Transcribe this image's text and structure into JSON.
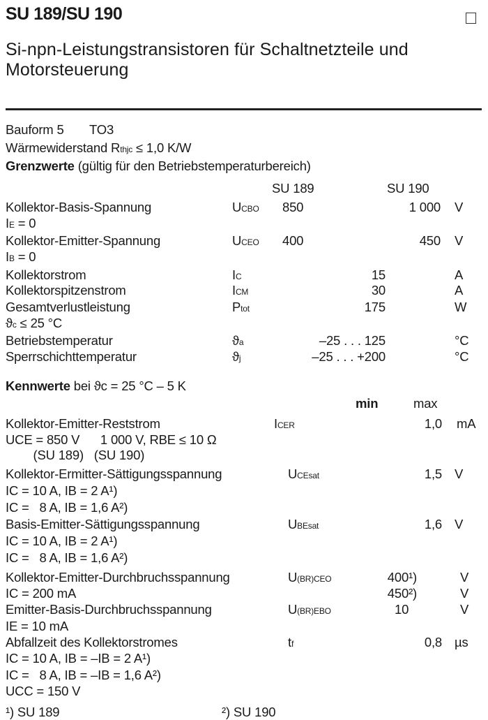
{
  "header": {
    "title": "SU 189/SU 190",
    "subtitle_line1": "Si-npn-Leistungstransistoren für Schaltnetzteile und",
    "subtitle_line2": "Motorsteuerung"
  },
  "info": {
    "bauform": "Bauform 5",
    "package": "TO3",
    "rth_label": "Wärmewiderstand",
    "rth_sym": "R",
    "rth_sub": "thjc",
    "rth_value": "≤ 1,0 K/W"
  },
  "grenzwerte": {
    "heading_bold": "Grenzwerte",
    "heading_rest": "(gültig für den Betriebstemperaturbereich)",
    "col1": "SU 189",
    "col2": "SU 190",
    "rows": [
      {
        "name": "Kollektor-Basis-Spannung",
        "sym": "U",
        "sub": "CBO",
        "v1": "850",
        "v2": "1 000",
        "unit": "V",
        "cond": "I",
        "cond_sub": "E",
        "cond_rest": " = 0"
      },
      {
        "name": "Kollektor-Emitter-Spannung",
        "sym": "U",
        "sub": "CEO",
        "v1": "400",
        "v2": "450",
        "unit": "V",
        "cond": "I",
        "cond_sub": "B",
        "cond_rest": " = 0"
      },
      {
        "name": "Kollektorstrom",
        "sym": "I",
        "sub": "C",
        "v": "15",
        "unit": "A"
      },
      {
        "name": "Kollektorspitzenstrom",
        "sym": "I",
        "sub": "CM",
        "v": "30",
        "unit": "A"
      },
      {
        "name": "Gesamtverlustleistung",
        "sym": "P",
        "sub": "tot",
        "v": "175",
        "unit": "W",
        "cond": "ϑ",
        "cond_sub": "c",
        "cond_rest": " ≤ 25 °C"
      },
      {
        "name": "Betriebstemperatur",
        "sym": "ϑ",
        "sub": "a",
        "v": "–25 . . . 125",
        "unit": "°C"
      },
      {
        "name": "Sperrschichttemperatur",
        "sym": "ϑ",
        "sub": "j",
        "v": "–25 . . . +200",
        "unit": "°C"
      }
    ]
  },
  "kennwerte": {
    "heading_bold": "Kennwerte",
    "heading_rest": "bei ϑc = 25 °C – 5 K",
    "col_min": "min",
    "col_max": "max",
    "lines": [
      {
        "text": "Kollektor-Emitter-Reststrom",
        "sym": "I",
        "sub": "CER",
        "max": "1,0",
        "unit": "mA"
      },
      {
        "text": "UCE = 850 V      1 000 V, RBE ≤ 10 Ω"
      },
      {
        "text": "        (SU 189)   (SU 190)"
      },
      {
        "text": "Kollektor-Ermitter-Sättigungsspannung",
        "sym": "U",
        "sub": "CEsat",
        "max": "1,5",
        "unit": "V"
      },
      {
        "text": "IC = 10 A, IB = 2 A¹)"
      },
      {
        "text": "IC =   8 A, IB = 1,6 A²)"
      },
      {
        "text": "Basis-Emitter-Sättigungsspannung",
        "sym": "U",
        "sub": "BEsat",
        "max": "1,6",
        "unit": "V"
      },
      {
        "text": "IC = 10 A, IB = 2 A¹)"
      },
      {
        "text": "IC =   8 A, IB = 1,6 A²)"
      },
      {
        "text": "Kollektor-Emitter-Durchbruchsspannung",
        "sym": "U",
        "sub": "(BR)CEO",
        "min": "400¹)",
        "unit": "V"
      },
      {
        "text": "IC = 200 mA",
        "min": "450²)",
        "unit": "V"
      },
      {
        "text": "Emitter-Basis-Durchbruchsspannung",
        "sym": "U",
        "sub": "(BR)EBO",
        "min": "10",
        "unit": "V"
      },
      {
        "text": "IE = 10 mA"
      },
      {
        "text": "Abfallzeit des Kollektorstromes",
        "sym": "t",
        "sub": "f",
        "max": "0,8",
        "unit": "µs"
      },
      {
        "text": "IC = 10 A, IB = –IB = 2 A¹)"
      },
      {
        "text": "IC =   8 A, IB = –IB = 1,6 A²)"
      },
      {
        "text": "UCC = 150 V"
      }
    ]
  },
  "footnotes": {
    "f1": "¹) SU 189",
    "f2": "²) SU 190"
  }
}
